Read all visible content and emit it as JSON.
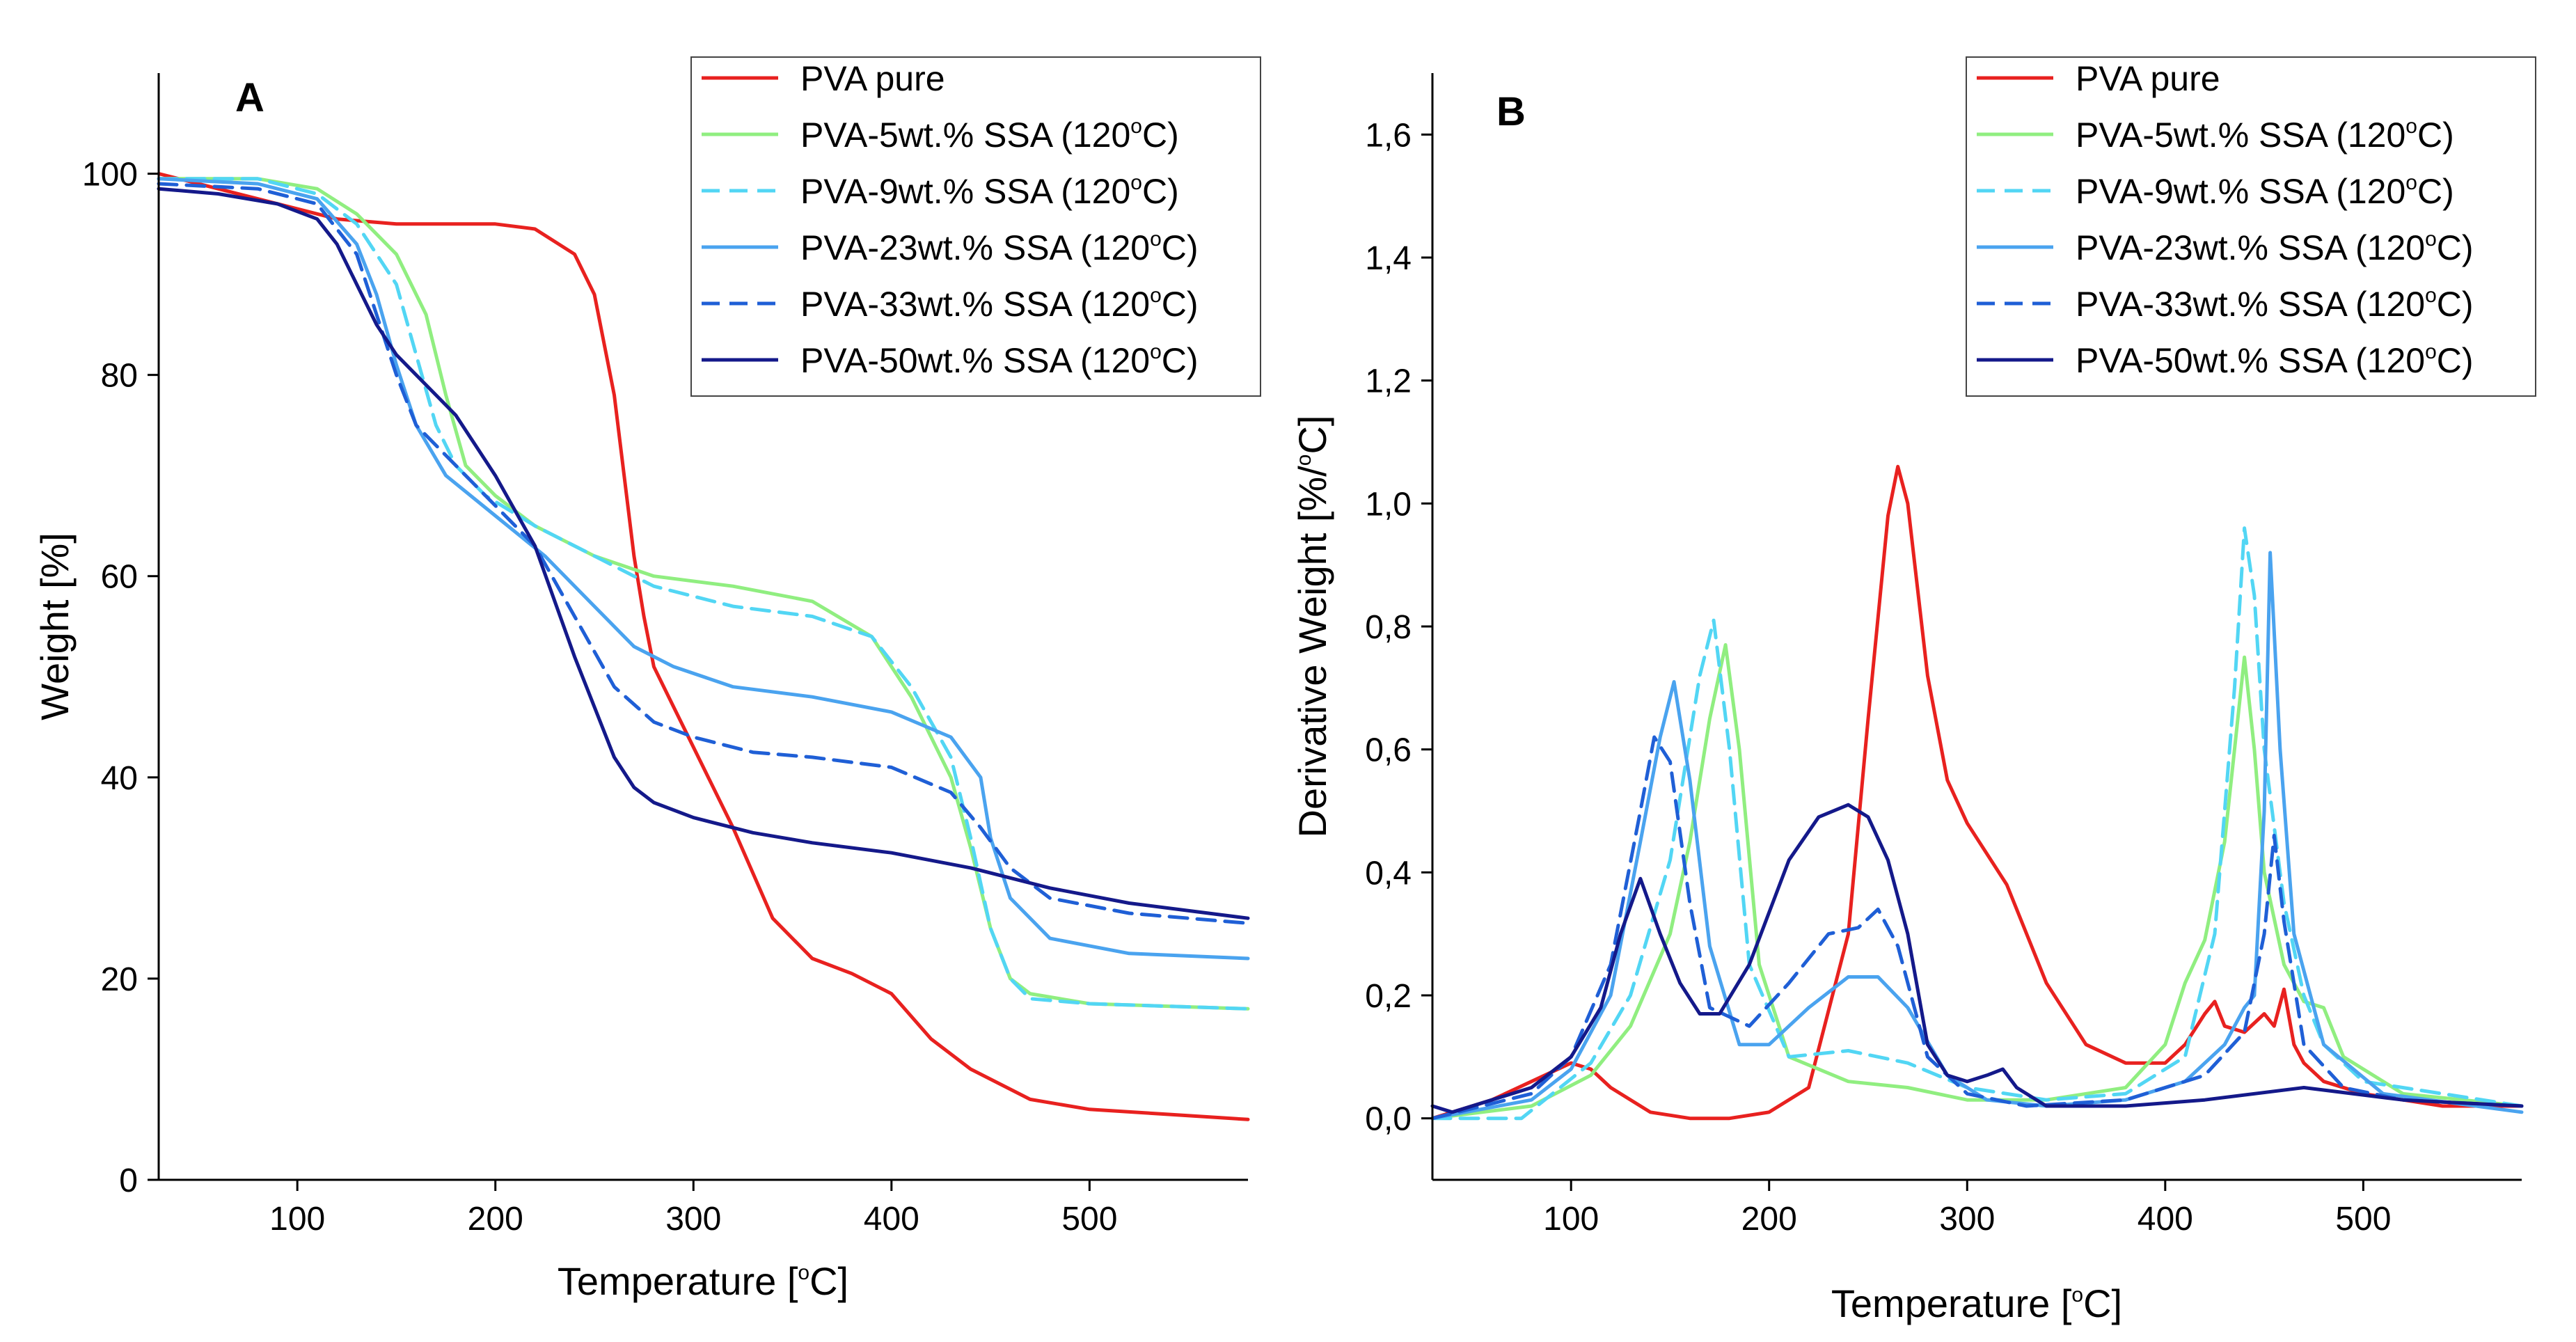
{
  "chart_data": [
    {
      "panel": "A",
      "type": "line",
      "title": "A",
      "xlabel": "Temperature [°C]",
      "xlabel_parts": {
        "pre": "Temperature [",
        "sup": "o",
        "post": "C]"
      },
      "ylabel": "Weight [%]",
      "xlim": [
        30,
        580
      ],
      "ylim": [
        0,
        110
      ],
      "xticks": [
        100,
        200,
        300,
        400,
        500
      ],
      "xtick_labels": [
        "100",
        "200",
        "300",
        "400",
        "500"
      ],
      "yticks": [
        0,
        20,
        40,
        60,
        80,
        100
      ],
      "ytick_labels": [
        "0",
        "20",
        "40",
        "60",
        "80",
        "100"
      ],
      "grid": false,
      "legend_position": "top-right",
      "series": [
        {
          "name": "PVA pure",
          "label_pre": "PVA pure",
          "label_post": "",
          "color": "#e8211f",
          "dash": "solid",
          "x": [
            30,
            100,
            120,
            150,
            200,
            220,
            240,
            250,
            260,
            265,
            270,
            275,
            280,
            290,
            300,
            320,
            340,
            360,
            380,
            400,
            420,
            440,
            460,
            470,
            500,
            540,
            580
          ],
          "y": [
            100,
            96.5,
            95.5,
            95,
            95,
            94.5,
            92,
            88,
            78,
            70,
            62,
            56,
            51,
            47,
            43,
            35,
            26,
            22,
            20.5,
            18.5,
            14,
            11,
            9,
            8,
            7,
            6.5,
            6
          ]
        },
        {
          "name": "PVA-5wt.% SSA (120°C)",
          "label_pre": "PVA-5wt.% SSA (120",
          "label_post": "C)",
          "color": "#90ee80",
          "dash": "solid",
          "x": [
            30,
            80,
            110,
            130,
            150,
            165,
            175,
            185,
            200,
            220,
            250,
            280,
            320,
            360,
            390,
            410,
            430,
            440,
            450,
            460,
            470,
            500,
            580
          ],
          "y": [
            99.5,
            99.5,
            98.5,
            96,
            92,
            86,
            78,
            71,
            68,
            65,
            62,
            60,
            59,
            57.5,
            54,
            48,
            40,
            33,
            25,
            20,
            18.5,
            17.5,
            17
          ]
        },
        {
          "name": "PVA-9wt.% SSA (120°C)",
          "label_pre": "PVA-9wt.% SSA (120",
          "label_post": "C)",
          "color": "#52d6f4",
          "dash": "dashed",
          "x": [
            30,
            80,
            110,
            130,
            150,
            160,
            170,
            180,
            195,
            220,
            250,
            280,
            320,
            360,
            390,
            410,
            430,
            440,
            450,
            460,
            470,
            500,
            580
          ],
          "y": [
            99.5,
            99.5,
            98,
            95,
            89,
            82,
            75,
            71,
            68,
            65,
            62,
            59,
            57,
            56,
            54,
            49,
            42,
            34,
            25,
            20,
            18,
            17.5,
            17
          ]
        },
        {
          "name": "PVA-23wt.% SSA (120°C)",
          "label_pre": "PVA-23wt.% SSA (120",
          "label_post": "C)",
          "color": "#4aa3ef",
          "dash": "solid",
          "x": [
            30,
            80,
            110,
            130,
            140,
            150,
            160,
            175,
            200,
            225,
            250,
            270,
            290,
            320,
            360,
            400,
            430,
            445,
            450,
            460,
            480,
            520,
            580
          ],
          "y": [
            99.5,
            99,
            97.5,
            93,
            88,
            81,
            75,
            70,
            66,
            62,
            57,
            53,
            51,
            49,
            48,
            46.5,
            44,
            40,
            34,
            28,
            24,
            22.5,
            22
          ]
        },
        {
          "name": "PVA-33wt.% SSA (120°C)",
          "label_pre": "PVA-33wt.% SSA (120",
          "label_post": "C)",
          "color": "#1f5fd6",
          "dash": "dashed",
          "x": [
            30,
            80,
            110,
            130,
            140,
            150,
            160,
            175,
            200,
            220,
            240,
            260,
            280,
            300,
            330,
            360,
            400,
            430,
            445,
            460,
            480,
            520,
            580
          ],
          "y": [
            99,
            98.5,
            97,
            92,
            86,
            80,
            75,
            72,
            67,
            63,
            56,
            49,
            45.5,
            44,
            42.5,
            42,
            41,
            38.5,
            35,
            31,
            28,
            26.5,
            25.5
          ]
        },
        {
          "name": "PVA-50wt.% SSA (120°C)",
          "label_pre": "PVA-50wt.% SSA (120",
          "label_post": "C)",
          "color": "#14198a",
          "dash": "solid",
          "x": [
            30,
            60,
            90,
            110,
            120,
            130,
            140,
            150,
            160,
            180,
            200,
            220,
            240,
            260,
            270,
            280,
            300,
            330,
            360,
            400,
            440,
            480,
            520,
            580
          ],
          "y": [
            98.5,
            98,
            97,
            95.5,
            93,
            89,
            85,
            82,
            80,
            76,
            70,
            63,
            52,
            42,
            39,
            37.5,
            36,
            34.5,
            33.5,
            32.5,
            31,
            29,
            27.5,
            26
          ]
        }
      ]
    },
    {
      "panel": "B",
      "type": "line",
      "title": "B",
      "xlabel": "Temperature [°C]",
      "xlabel_parts": {
        "pre": "Temperature [",
        "sup": "o",
        "post": "C]"
      },
      "ylabel": "Derivative Weight [%/°C]",
      "ylabel_parts": {
        "pre": "Derivative Weight [%/",
        "sup": "o",
        "post": "C]"
      },
      "xlim": [
        30,
        580
      ],
      "ylim": [
        -0.1,
        1.7
      ],
      "xticks": [
        100,
        200,
        300,
        400,
        500
      ],
      "xtick_labels": [
        "100",
        "200",
        "300",
        "400",
        "500"
      ],
      "yticks": [
        0.0,
        0.2,
        0.4,
        0.6,
        0.8,
        1.0,
        1.2,
        1.4,
        1.6
      ],
      "ytick_labels": [
        "0,0",
        "0,2",
        "0,4",
        "0,6",
        "0,8",
        "1,0",
        "1,2",
        "1,4",
        "1,6"
      ],
      "grid": false,
      "legend_position": "top-right",
      "series": [
        {
          "name": "PVA pure",
          "label_pre": "PVA pure",
          "label_post": "",
          "color": "#e8211f",
          "dash": "solid",
          "x": [
            30,
            60,
            80,
            100,
            110,
            120,
            140,
            160,
            180,
            200,
            220,
            240,
            250,
            260,
            265,
            270,
            280,
            290,
            300,
            320,
            340,
            360,
            380,
            400,
            410,
            420,
            425,
            430,
            440,
            450,
            455,
            460,
            465,
            470,
            480,
            500,
            520,
            540,
            580
          ],
          "y": [
            0.0,
            0.03,
            0.06,
            0.09,
            0.08,
            0.05,
            0.01,
            0.0,
            0.0,
            0.01,
            0.05,
            0.3,
            0.65,
            0.98,
            1.06,
            1.0,
            0.72,
            0.55,
            0.48,
            0.38,
            0.22,
            0.12,
            0.09,
            0.09,
            0.12,
            0.17,
            0.19,
            0.15,
            0.14,
            0.17,
            0.15,
            0.21,
            0.12,
            0.09,
            0.06,
            0.04,
            0.03,
            0.02,
            0.02
          ]
        },
        {
          "name": "PVA-5wt.% SSA (120°C)",
          "label_pre": "PVA-5wt.% SSA (120",
          "label_post": "C)",
          "color": "#90ee80",
          "dash": "solid",
          "x": [
            30,
            80,
            110,
            130,
            150,
            160,
            170,
            178,
            185,
            195,
            210,
            240,
            270,
            300,
            340,
            380,
            400,
            410,
            420,
            430,
            440,
            445,
            450,
            460,
            470,
            480,
            490,
            520,
            580
          ],
          "y": [
            0.0,
            0.02,
            0.07,
            0.15,
            0.3,
            0.45,
            0.65,
            0.77,
            0.6,
            0.25,
            0.1,
            0.06,
            0.05,
            0.03,
            0.03,
            0.05,
            0.12,
            0.22,
            0.29,
            0.45,
            0.75,
            0.6,
            0.4,
            0.25,
            0.19,
            0.18,
            0.1,
            0.04,
            0.02
          ]
        },
        {
          "name": "PVA-9wt.% SSA (120°C)",
          "label_pre": "PVA-9wt.% SSA (120",
          "label_post": "C)",
          "color": "#52d6f4",
          "dash": "dashed",
          "x": [
            30,
            75,
            110,
            130,
            150,
            160,
            165,
            172,
            180,
            190,
            210,
            240,
            270,
            300,
            340,
            380,
            410,
            425,
            435,
            440,
            445,
            450,
            460,
            470,
            480,
            500,
            580
          ],
          "y": [
            0.0,
            0.0,
            0.09,
            0.2,
            0.42,
            0.62,
            0.72,
            0.81,
            0.6,
            0.25,
            0.1,
            0.11,
            0.09,
            0.05,
            0.03,
            0.04,
            0.1,
            0.3,
            0.7,
            0.96,
            0.85,
            0.6,
            0.35,
            0.2,
            0.12,
            0.06,
            0.02
          ]
        },
        {
          "name": "PVA-23wt.% SSA (120°C)",
          "label_pre": "PVA-23wt.% SSA (120",
          "label_post": "C)",
          "color": "#4aa3ef",
          "dash": "solid",
          "x": [
            30,
            80,
            100,
            120,
            135,
            145,
            152,
            160,
            170,
            185,
            200,
            220,
            240,
            255,
            270,
            290,
            310,
            340,
            380,
            410,
            430,
            440,
            445,
            450,
            453,
            458,
            465,
            480,
            510,
            580
          ],
          "y": [
            0.0,
            0.03,
            0.08,
            0.2,
            0.45,
            0.62,
            0.71,
            0.55,
            0.28,
            0.12,
            0.12,
            0.18,
            0.23,
            0.23,
            0.18,
            0.07,
            0.03,
            0.02,
            0.03,
            0.06,
            0.12,
            0.18,
            0.2,
            0.5,
            0.92,
            0.6,
            0.3,
            0.12,
            0.04,
            0.01
          ]
        },
        {
          "name": "PVA-33wt.% SSA (120°C)",
          "label_pre": "PVA-33wt.% SSA (120",
          "label_post": "C)",
          "color": "#1f5fd6",
          "dash": "dashed",
          "x": [
            30,
            80,
            100,
            120,
            135,
            142,
            150,
            160,
            170,
            190,
            210,
            230,
            245,
            255,
            265,
            280,
            300,
            330,
            380,
            420,
            440,
            450,
            455,
            460,
            470,
            490,
            520,
            580
          ],
          "y": [
            0.0,
            0.04,
            0.1,
            0.25,
            0.5,
            0.62,
            0.58,
            0.35,
            0.18,
            0.15,
            0.22,
            0.3,
            0.31,
            0.34,
            0.28,
            0.1,
            0.04,
            0.02,
            0.03,
            0.07,
            0.14,
            0.3,
            0.46,
            0.32,
            0.12,
            0.05,
            0.03,
            0.02
          ]
        },
        {
          "name": "PVA-50wt.% SSA (120°C)",
          "label_pre": "PVA-50wt.% SSA (120",
          "label_post": "C)",
          "color": "#14198a",
          "dash": "solid",
          "x": [
            30,
            40,
            60,
            80,
            100,
            115,
            125,
            135,
            145,
            155,
            165,
            175,
            190,
            210,
            225,
            240,
            250,
            260,
            270,
            280,
            290,
            300,
            310,
            318,
            325,
            340,
            380,
            420,
            470,
            520,
            580
          ],
          "y": [
            0.02,
            0.01,
            0.03,
            0.05,
            0.1,
            0.18,
            0.3,
            0.39,
            0.3,
            0.22,
            0.17,
            0.17,
            0.25,
            0.42,
            0.49,
            0.51,
            0.49,
            0.42,
            0.3,
            0.12,
            0.07,
            0.06,
            0.07,
            0.08,
            0.05,
            0.02,
            0.02,
            0.03,
            0.05,
            0.03,
            0.02
          ]
        }
      ]
    }
  ]
}
